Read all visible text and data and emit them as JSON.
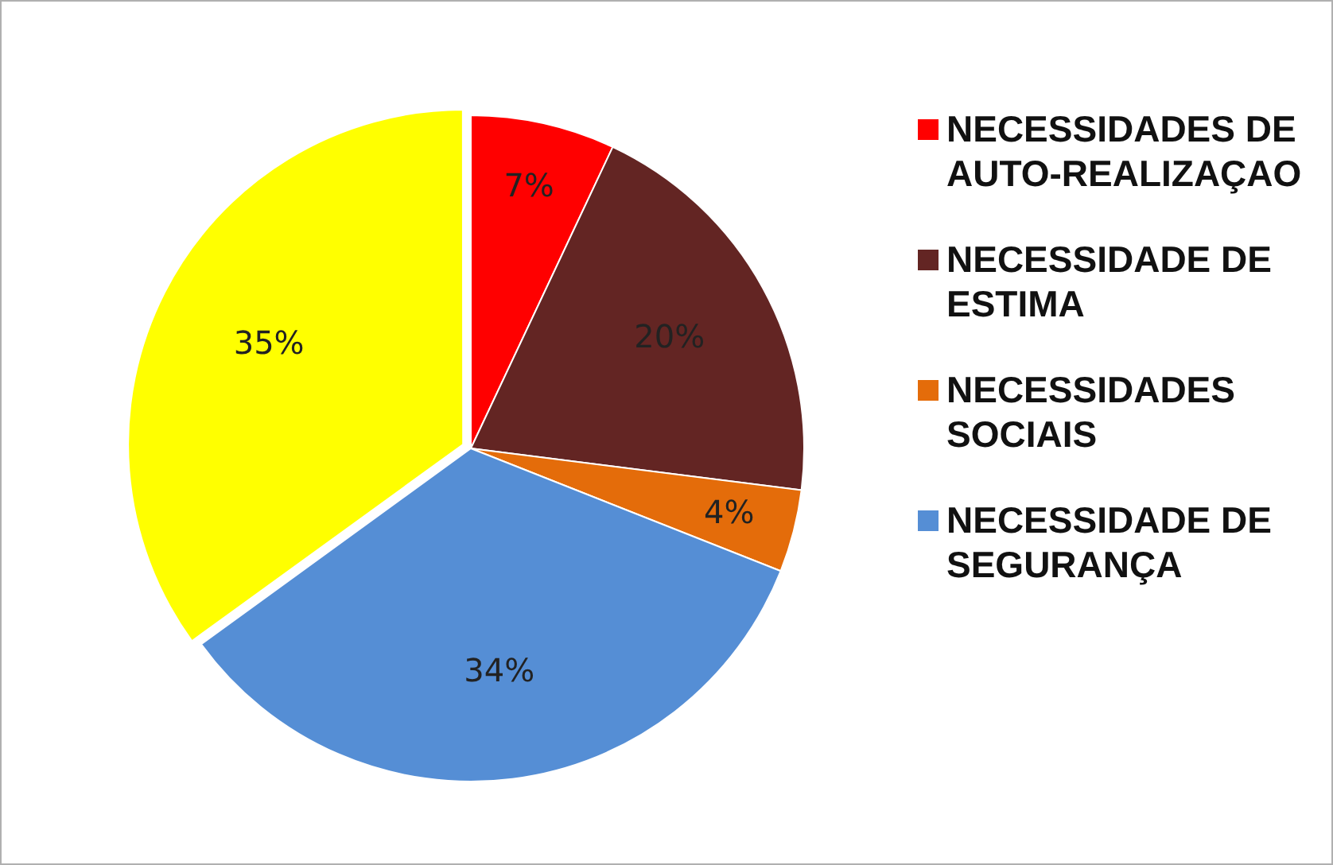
{
  "chart_data": {
    "type": "pie",
    "categories": [
      "NECESSIDADES DE AUTO-REALIZAÇAO",
      "NECESSIDADE DE ESTIMA",
      "NECESSIDADES SOCIAIS",
      "NECESSIDADE DE SEGURANÇA",
      null
    ],
    "values": [
      7,
      20,
      4,
      34,
      35
    ],
    "colors": [
      "#ff0000",
      "#632523",
      "#e46c0a",
      "#558ed5",
      "#ffff00"
    ],
    "value_labels": [
      "7%",
      "20%",
      "4%",
      "34%",
      "35%"
    ],
    "legend": "right"
  }
}
